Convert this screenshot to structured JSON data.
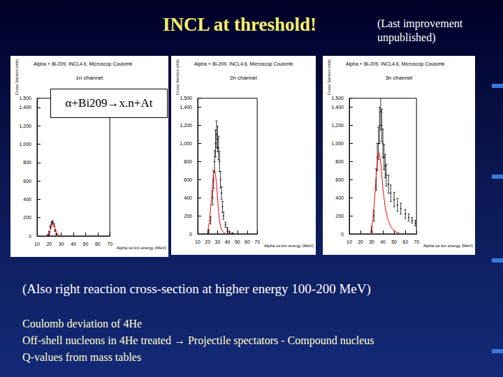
{
  "slide": {
    "title": "INCL at threshold!",
    "note": [
      "(Last improvement",
      "unpublished)"
    ],
    "overlay": "α+Bi209→x.n+At",
    "caption": "(Also right reaction cross-section at higher energy 100-200 MeV)",
    "bullets": [
      "Coulomb deviation of 4He",
      "Off-shell nucleons in 4He treated → Projectile spectators - Compound nucleus",
      "Q-values from mass tables"
    ]
  },
  "chart_data": [
    {
      "type": "scatter",
      "title": "Alpha + Bi-209, INCL4.6, Microscop Coulomb",
      "annotation": "1n channel",
      "x_label": "Alpha tot kin energy (MeV)",
      "y_label": "Cross Section (mb)",
      "xlim": [
        10,
        70
      ],
      "xticks": [
        10,
        20,
        30,
        40,
        50,
        60,
        70
      ],
      "ylim": [
        0,
        1500
      ],
      "yticks": [
        0,
        200,
        400,
        600,
        800,
        1000,
        1200,
        1400
      ],
      "grid": false,
      "series": [
        {
          "type": "scatter",
          "color": "#000000",
          "marker": "circle",
          "x": [
            19,
            20,
            21,
            22,
            23,
            24,
            25,
            26
          ],
          "values": [
            10,
            40,
            100,
            140,
            150,
            120,
            60,
            20
          ],
          "errors": [
            5,
            10,
            15,
            15,
            15,
            15,
            10,
            8
          ]
        },
        {
          "type": "line",
          "color": "#ff0000",
          "line_style": "solid",
          "x": [
            18,
            20,
            22,
            23,
            24,
            25,
            26,
            28,
            30
          ],
          "values": [
            0,
            30,
            110,
            140,
            130,
            80,
            30,
            5,
            0
          ]
        }
      ]
    },
    {
      "type": "scatter",
      "title": "Alpha + Bi-209, INCL4.6, Microscop Coulomb",
      "annotation": "2n channel",
      "x_label": "Alpha tot kin energy (MeV)",
      "y_label": "Cross Section (mb)",
      "xlim": [
        10,
        70
      ],
      "xticks": [
        10,
        20,
        30,
        40,
        50,
        60,
        70
      ],
      "ylim": [
        0,
        1500
      ],
      "yticks": [
        0,
        200,
        400,
        600,
        800,
        1000,
        1200,
        1400
      ],
      "grid": false,
      "series": [
        {
          "type": "scatter",
          "color": "#000000",
          "marker": "circle",
          "x": [
            21,
            23,
            25,
            26,
            27,
            28,
            29,
            30,
            31,
            32,
            33,
            34,
            35,
            36,
            38,
            40,
            42,
            45
          ],
          "values": [
            30,
            150,
            400,
            600,
            800,
            1000,
            1100,
            1050,
            950,
            800,
            600,
            450,
            300,
            200,
            100,
            50,
            20,
            5
          ],
          "errors": [
            20,
            40,
            80,
            100,
            120,
            150,
            150,
            140,
            130,
            110,
            90,
            70,
            60,
            40,
            30,
            20,
            10,
            5
          ]
        },
        {
          "type": "line",
          "color": "#ff0000",
          "line_style": "solid",
          "x": [
            20,
            22,
            24,
            25,
            26,
            27,
            28,
            29,
            30,
            31,
            32,
            33,
            35,
            38
          ],
          "values": [
            20,
            150,
            400,
            550,
            680,
            700,
            650,
            550,
            400,
            250,
            150,
            80,
            30,
            0
          ]
        }
      ]
    },
    {
      "type": "scatter",
      "title": "Alpha + Bi-209, INCL4.6, Microscop Coulomb",
      "annotation": "3n channel",
      "x_label": "Alpha tot kin energy (MeV)",
      "y_label": "Cross Section (mb)",
      "xlim": [
        10,
        70
      ],
      "xticks": [
        10,
        20,
        30,
        40,
        50,
        60,
        70
      ],
      "ylim": [
        0,
        1500
      ],
      "yticks": [
        0,
        200,
        400,
        600,
        800,
        1000,
        1200,
        1400
      ],
      "grid": false,
      "series": [
        {
          "type": "scatter",
          "color": "#000000",
          "marker": "circle",
          "x": [
            30,
            32,
            34,
            35,
            36,
            37,
            38,
            39,
            40,
            41,
            42,
            43,
            45,
            47,
            50,
            53,
            56,
            60,
            63,
            66,
            69
          ],
          "values": [
            50,
            200,
            600,
            850,
            1000,
            1200,
            1350,
            1200,
            1000,
            850,
            750,
            650,
            550,
            450,
            380,
            320,
            280,
            220,
            180,
            150,
            120
          ],
          "errors": [
            30,
            60,
            120,
            150,
            180,
            200,
            200,
            180,
            160,
            140,
            130,
            120,
            100,
            90,
            80,
            70,
            60,
            50,
            40,
            30,
            30
          ]
        },
        {
          "type": "line",
          "color": "#ff0000",
          "line_style": "solid",
          "x": [
            29,
            31,
            33,
            34,
            35,
            36,
            37,
            38,
            39,
            40,
            42,
            44,
            47,
            50,
            55
          ],
          "values": [
            10,
            150,
            450,
            650,
            800,
            900,
            880,
            800,
            650,
            500,
            300,
            180,
            80,
            30,
            5
          ]
        }
      ]
    }
  ]
}
